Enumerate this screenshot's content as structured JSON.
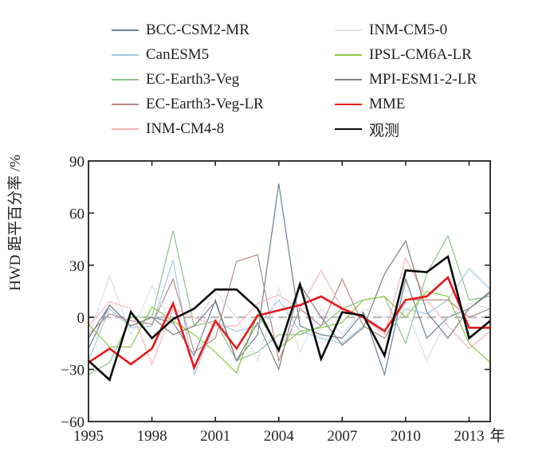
{
  "chart_data": {
    "type": "line",
    "title": "",
    "xlabel": "年",
    "ylabel": "HWD 距平百分率 /%",
    "xlim": [
      1995,
      2014
    ],
    "ylim": [
      -60,
      90
    ],
    "xticks": [
      1995,
      1998,
      2001,
      2004,
      2007,
      2010,
      2013
    ],
    "yticks": [
      -60,
      -30,
      0,
      30,
      60,
      90
    ],
    "xtick_labels": [
      "1995",
      "1998",
      "2001",
      "2004",
      "2007",
      "2010",
      "2013"
    ],
    "ytick_labels": [
      "−60",
      "−30",
      "0",
      "30",
      "60",
      "90"
    ],
    "x_unit_label": "年",
    "reference_line": {
      "y": 0,
      "style": "dashed",
      "color": "#bdbdbd"
    },
    "legend_position": "top",
    "x": [
      1995,
      1996,
      1997,
      1998,
      1999,
      2000,
      2001,
      2002,
      2003,
      2004,
      2005,
      2006,
      2007,
      2008,
      2009,
      2010,
      2011,
      2012,
      2013,
      2014
    ],
    "series": [
      {
        "name": "BCC-CSM2-MR",
        "color": "#6b8096",
        "width": 1.2,
        "values": [
          -18,
          7,
          -5,
          0,
          -3,
          -22,
          10,
          -25,
          -10,
          77,
          -5,
          -10,
          -12,
          3,
          -33,
          22,
          -12,
          0,
          5,
          15
        ]
      },
      {
        "name": "CanESM5",
        "color": "#9ccbe0",
        "width": 1.2,
        "values": [
          -25,
          5,
          -6,
          -5,
          33,
          -33,
          -3,
          -8,
          -5,
          10,
          -8,
          -12,
          -15,
          -5,
          -12,
          5,
          2,
          10,
          28,
          16
        ]
      },
      {
        "name": "EC-Earth3-Veg",
        "color": "#8fc08f",
        "width": 1.2,
        "values": [
          -33,
          -26,
          0,
          0,
          50,
          -5,
          -2,
          -25,
          -20,
          -10,
          -10,
          -5,
          5,
          10,
          12,
          -15,
          25,
          47,
          10,
          12
        ]
      },
      {
        "name": "EC-Earth3-Veg-LR",
        "color": "#b88a8a",
        "width": 1.2,
        "values": [
          -10,
          2,
          -2,
          -4,
          22,
          -20,
          -12,
          32,
          36,
          -25,
          5,
          -5,
          22,
          -5,
          -12,
          10,
          10,
          10,
          0,
          5
        ]
      },
      {
        "name": "INM-CM4-8",
        "color": "#f6b4b8",
        "width": 1.2,
        "values": [
          -5,
          9,
          5,
          -27,
          5,
          0,
          -5,
          -5,
          8,
          13,
          5,
          27,
          5,
          0,
          -10,
          34,
          10,
          -5,
          -18,
          -8
        ]
      },
      {
        "name": "INM-CM5-0",
        "color": "#dcdcf0",
        "width": 1.2,
        "values": [
          -12,
          24,
          -10,
          18,
          -5,
          -5,
          15,
          0,
          -25,
          17,
          -20,
          5,
          -10,
          5,
          0,
          5,
          -25,
          0,
          8,
          5
        ]
      },
      {
        "name": "IPSL-CM6A-LR",
        "color": "#8cc63f",
        "width": 1.2,
        "values": [
          -4,
          -17,
          -17,
          6,
          -2,
          -10,
          -20,
          -32,
          2,
          -18,
          -8,
          -6,
          -3,
          10,
          12,
          0,
          15,
          12,
          -15,
          -26
        ]
      },
      {
        "name": "MPI-ESM1-2-LR",
        "color": "#808080",
        "width": 1.2,
        "values": [
          -12,
          7,
          -5,
          0,
          -10,
          -5,
          9,
          -25,
          -3,
          -30,
          19,
          0,
          -16,
          -6,
          25,
          44,
          3,
          -12,
          5,
          14
        ]
      },
      {
        "name": "MME",
        "color": "#e8191c",
        "width": 2.6,
        "values": [
          -26,
          -18,
          -27,
          -18,
          8,
          -29,
          -2,
          -18,
          1,
          4,
          7,
          12,
          5,
          0,
          -8,
          10,
          12,
          23,
          -6,
          -6
        ]
      },
      {
        "name": "观测",
        "color": "#0a0a0a",
        "width": 2.6,
        "values": [
          -25,
          -36,
          3,
          -12,
          -1,
          5,
          16,
          16,
          5,
          -19,
          19,
          -24,
          3,
          1,
          -22,
          27,
          26,
          35,
          -12,
          -2
        ]
      }
    ]
  }
}
